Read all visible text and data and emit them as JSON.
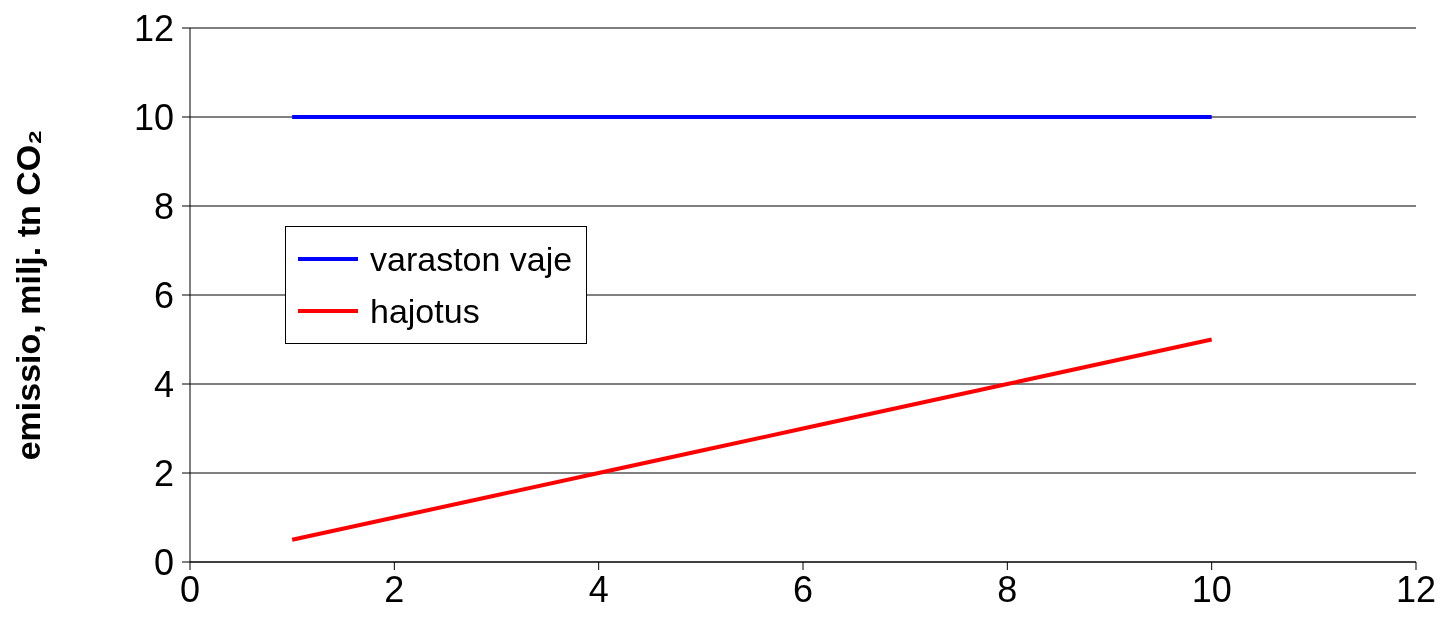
{
  "chart_data": {
    "type": "line",
    "ylabel": "emissio, milj. tn CO₂",
    "x": [
      1,
      2,
      3,
      4,
      5,
      6,
      7,
      8,
      9,
      10
    ],
    "series": [
      {
        "name": "varaston vaje",
        "color": "#0000ff",
        "values": [
          10,
          10,
          10,
          10,
          10,
          10,
          10,
          10,
          10,
          10
        ]
      },
      {
        "name": "hajotus",
        "color": "#ff0000",
        "values": [
          0.5,
          1,
          1.5,
          2,
          2.5,
          3,
          3.5,
          4,
          4.5,
          5
        ]
      }
    ],
    "xlim": [
      0,
      12
    ],
    "xticks": [
      0,
      2,
      4,
      6,
      8,
      10,
      12
    ],
    "ylim": [
      0,
      12
    ],
    "yticks": [
      0,
      2,
      4,
      6,
      8,
      10,
      12
    ],
    "grid": "y",
    "legend": "left",
    "marker": "none",
    "line_style": "solid"
  }
}
